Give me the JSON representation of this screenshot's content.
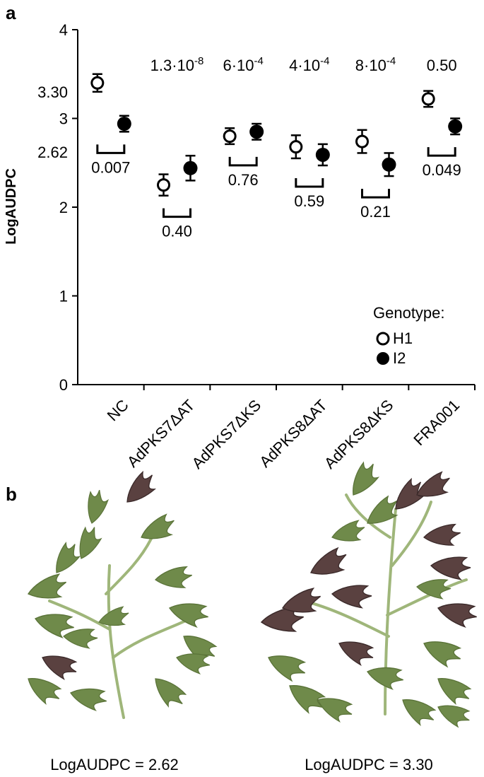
{
  "panel_a_label": "a",
  "panel_b_label": "b",
  "chart_data": {
    "type": "scatter",
    "ylabel": "LogAUDPC",
    "xlabel": "",
    "ylim": [
      0,
      4
    ],
    "yticks": [
      "0",
      "1",
      "2",
      "3",
      "4"
    ],
    "yticks_extra": [
      "2.62",
      "3.30"
    ],
    "grid": false,
    "legend_title": "Genotype:",
    "legend_placement": "bottom-right",
    "categories": [
      "NC",
      "AdPKS7ΔAT",
      "AdPKS7ΔKS",
      "AdPKS8ΔAT",
      "AdPKS8ΔKS",
      "FRA001"
    ],
    "series": [
      {
        "name": "H1",
        "marker": "open-circle",
        "values": [
          3.4,
          2.25,
          2.8,
          2.68,
          2.74,
          3.22
        ],
        "err": [
          0.1,
          0.12,
          0.09,
          0.13,
          0.13,
          0.09
        ]
      },
      {
        "name": "I2",
        "marker": "filled-circle",
        "values": [
          2.94,
          2.44,
          2.85,
          2.59,
          2.48,
          2.91
        ],
        "err": [
          0.09,
          0.14,
          0.09,
          0.12,
          0.13,
          0.09
        ]
      }
    ],
    "top_pvalues": [
      {
        "category": "AdPKS7ΔAT",
        "mant": "1.3·10",
        "exp": "-8"
      },
      {
        "category": "AdPKS7ΔKS",
        "mant": "6·10",
        "exp": "-4"
      },
      {
        "category": "AdPKS8ΔAT",
        "mant": "4·10",
        "exp": "-4"
      },
      {
        "category": "AdPKS8ΔKS",
        "mant": "8·10",
        "exp": "-4"
      },
      {
        "category": "FRA001",
        "mant": "0.50",
        "exp": ""
      }
    ],
    "pair_pvalues": [
      "0.007",
      "0.40",
      "0.76",
      "0.59",
      "0.21",
      "0.049"
    ]
  },
  "captions": [
    "LogAUDPC = 2.62",
    "LogAUDPC = 3.30"
  ],
  "colors": {
    "leaf_green": "#6f8a4a",
    "leaf_light": "#9fb67a",
    "lesion": "#5a4140"
  }
}
